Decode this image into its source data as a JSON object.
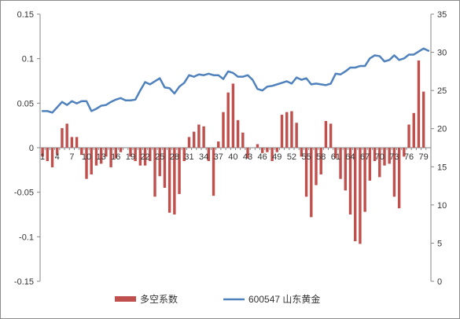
{
  "chart_data": {
    "type": "bar+line",
    "title": "",
    "x": {
      "start": 1,
      "count": 80,
      "tick_labels": [
        "1",
        "4",
        "7",
        "10",
        "13",
        "16",
        "19",
        "22",
        "25",
        "28",
        "31",
        "34",
        "37",
        "40",
        "43",
        "46",
        "49",
        "52",
        "55",
        "58",
        "61",
        "64",
        "67",
        "70",
        "73",
        "76",
        "79"
      ]
    },
    "y_left": {
      "min": -0.15,
      "max": 0.15,
      "ticks": [
        -0.15,
        -0.1,
        -0.05,
        0,
        0.05,
        0.1,
        0.15
      ],
      "tick_labels": [
        "-0.15",
        "-0.1",
        "-0.05",
        "0",
        "0.05",
        "0.1",
        "0.15"
      ]
    },
    "y_right": {
      "min": 0,
      "max": 35,
      "ticks": [
        0,
        5,
        10,
        15,
        20,
        25,
        30,
        35
      ],
      "tick_labels": [
        "0",
        "5",
        "10",
        "15",
        "20",
        "25",
        "30",
        "35"
      ]
    },
    "series": [
      {
        "name": "多空系数",
        "type": "bar",
        "axis": "left",
        "color": "#c0504d",
        "values": [
          -0.01,
          -0.015,
          -0.022,
          -0.008,
          0.022,
          0.027,
          0.012,
          0.012,
          -0.008,
          -0.035,
          -0.03,
          -0.02,
          -0.018,
          -0.01,
          -0.022,
          -0.012,
          -0.005,
          0,
          -0.01,
          -0.015,
          -0.02,
          -0.02,
          -0.015,
          -0.055,
          -0.032,
          -0.045,
          -0.073,
          -0.075,
          -0.052,
          -0.015,
          0.012,
          0.018,
          0.026,
          0.024,
          -0.015,
          -0.054,
          0.007,
          0.04,
          0.062,
          0.072,
          0.031,
          0.017,
          -0.012,
          0,
          0.004,
          -0.006,
          -0.005,
          -0.015,
          -0.005,
          0.037,
          0.04,
          0.041,
          0.028,
          -0.01,
          -0.055,
          -0.078,
          -0.042,
          -0.03,
          0.03,
          0.027,
          -0.012,
          -0.035,
          -0.048,
          -0.075,
          -0.105,
          -0.108,
          -0.072,
          -0.037,
          -0.015,
          -0.033,
          -0.02,
          -0.018,
          -0.055,
          -0.068,
          -0.01,
          0.026,
          0.039,
          0.098,
          0.063,
          0
        ]
      },
      {
        "name": "600547 山东黄金",
        "type": "line",
        "axis": "right",
        "color": "#4f81bd",
        "values": [
          22.3,
          22.3,
          22.1,
          22.8,
          23.5,
          23.1,
          23.6,
          23.3,
          23.6,
          23.6,
          22.3,
          22.6,
          23,
          23.1,
          23.5,
          23.8,
          24,
          23.7,
          23.7,
          23.8,
          25,
          26.1,
          25.8,
          26.2,
          26.6,
          25.4,
          25.3,
          24.6,
          25.5,
          26,
          27,
          26.8,
          27.1,
          27,
          27.2,
          27,
          27,
          26.5,
          27.5,
          27.3,
          26.8,
          26.8,
          27,
          26.4,
          25.2,
          25,
          25.5,
          25.6,
          25.8,
          26,
          26.2,
          25.9,
          26.7,
          26.4,
          26.6,
          25.8,
          25.9,
          25.8,
          25.7,
          25.9,
          27.2,
          27.1,
          27.5,
          28,
          28,
          28.2,
          28.2,
          29.2,
          29.6,
          29.5,
          28.8,
          29,
          29.6,
          29,
          29.2,
          29.7,
          29.7,
          30.1,
          30.5,
          30.2
        ]
      }
    ],
    "legend": {
      "position": "bottom"
    }
  }
}
